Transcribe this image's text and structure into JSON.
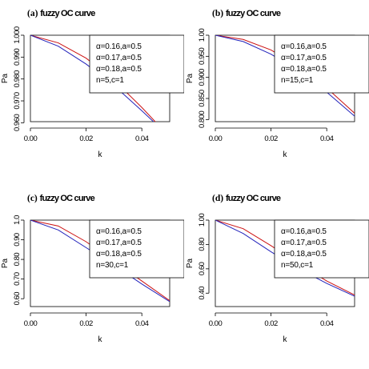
{
  "chart_data": [
    {
      "type": "line",
      "panel_label": "(a)",
      "title": "fuzzy OC curve",
      "xlabel": "k",
      "ylabel": "Pa",
      "x_ticks": [
        "0.00",
        "0.02",
        "0.04"
      ],
      "y_ticks": [
        "0.960",
        "0.970",
        "0.980",
        "0.990",
        "1.000"
      ],
      "y_tick_values": [
        0.96,
        0.97,
        0.98,
        0.99,
        1.0
      ],
      "xlim": [
        0,
        0.05
      ],
      "ylim": [
        0.9605,
        1.0
      ],
      "legend": {
        "position": "top-right",
        "entries": [
          "α=0.16,a=0.5",
          "α=0.17,a=0.5",
          "α=0.18,a=0.5",
          "n=5,c=1"
        ]
      },
      "series": [
        {
          "color": "#cc1111",
          "x": [
            0,
            0.01,
            0.02,
            0.03,
            0.04,
            0.05
          ],
          "values": [
            1.0,
            0.9965,
            0.9895,
            0.9795,
            0.967,
            0.9535
          ]
        },
        {
          "color": "#2222bb",
          "x": [
            0,
            0.01,
            0.02,
            0.03,
            0.04,
            0.05
          ],
          "values": [
            1.0,
            0.995,
            0.9868,
            0.977,
            0.9655,
            0.9535
          ]
        }
      ]
    },
    {
      "type": "line",
      "panel_label": "(b)",
      "title": "fuzzy OC curve",
      "xlabel": "k",
      "ylabel": "Pa",
      "x_ticks": [
        "0.00",
        "0.02",
        "0.04"
      ],
      "y_ticks": [
        "0.800",
        "0.850",
        "0.900",
        "0.950",
        "1.00"
      ],
      "y_tick_values": [
        0.8,
        0.85,
        0.9,
        0.95,
        1.0
      ],
      "xlim": [
        0,
        0.05
      ],
      "ylim": [
        0.795,
        1.0
      ],
      "legend": {
        "position": "top-right",
        "entries": [
          "α=0.16,a=0.5",
          "α=0.17,a=0.5",
          "α=0.18,a=0.5",
          "n=15,c=1"
        ]
      },
      "series": [
        {
          "color": "#cc1111",
          "x": [
            0,
            0.01,
            0.02,
            0.03,
            0.04,
            0.05
          ],
          "values": [
            1.0,
            0.99,
            0.965,
            0.925,
            0.875,
            0.815
          ]
        },
        {
          "color": "#2222bb",
          "x": [
            0,
            0.01,
            0.02,
            0.03,
            0.04,
            0.05
          ],
          "values": [
            1.0,
            0.985,
            0.955,
            0.915,
            0.865,
            0.808
          ]
        }
      ]
    },
    {
      "type": "line",
      "panel_label": "(c)",
      "title": "fuzzy OC curve",
      "xlabel": "k",
      "ylabel": "Pa",
      "x_ticks": [
        "0.00",
        "0.02",
        "0.04"
      ],
      "y_ticks": [
        "0.60",
        "0.70",
        "0.80",
        "0.90",
        "1.0"
      ],
      "y_tick_values": [
        0.6,
        0.7,
        0.8,
        0.9,
        1.0
      ],
      "xlim": [
        0,
        0.05
      ],
      "ylim": [
        0.56,
        1.0
      ],
      "legend": {
        "position": "top-right",
        "entries": [
          "α=0.16,a=0.5",
          "α=0.17,a=0.5",
          "α=0.18,a=0.5",
          "n=30,c=1"
        ]
      },
      "series": [
        {
          "color": "#cc1111",
          "x": [
            0,
            0.01,
            0.02,
            0.03,
            0.04,
            0.05
          ],
          "values": [
            1.0,
            0.97,
            0.89,
            0.79,
            0.69,
            0.59
          ]
        },
        {
          "color": "#2222bb",
          "x": [
            0,
            0.01,
            0.02,
            0.03,
            0.04,
            0.05
          ],
          "values": [
            1.0,
            0.95,
            0.86,
            0.77,
            0.675,
            0.585
          ]
        }
      ]
    },
    {
      "type": "line",
      "panel_label": "(d)",
      "title": "fuzzy OC curve",
      "xlabel": "k",
      "ylabel": "Pa",
      "x_ticks": [
        "0.00",
        "0.02",
        "0.04"
      ],
      "y_ticks": [
        "0.40",
        "0.60",
        "0.80",
        "1.00"
      ],
      "y_tick_values": [
        0.4,
        0.6,
        0.8,
        1.0
      ],
      "xlim": [
        0,
        0.05
      ],
      "ylim": [
        0.29,
        1.0
      ],
      "legend": {
        "position": "top-right",
        "entries": [
          "α=0.16,a=0.5",
          "α=0.17,a=0.5",
          "α=0.18,a=0.5",
          "n=50,c=1"
        ]
      },
      "series": [
        {
          "color": "#cc1111",
          "x": [
            0,
            0.01,
            0.02,
            0.03,
            0.04,
            0.05
          ],
          "values": [
            1.0,
            0.93,
            0.79,
            0.64,
            0.5,
            0.385
          ]
        },
        {
          "color": "#2222bb",
          "x": [
            0,
            0.01,
            0.02,
            0.03,
            0.04,
            0.05
          ],
          "values": [
            1.0,
            0.89,
            0.74,
            0.6,
            0.48,
            0.375
          ]
        }
      ]
    }
  ]
}
